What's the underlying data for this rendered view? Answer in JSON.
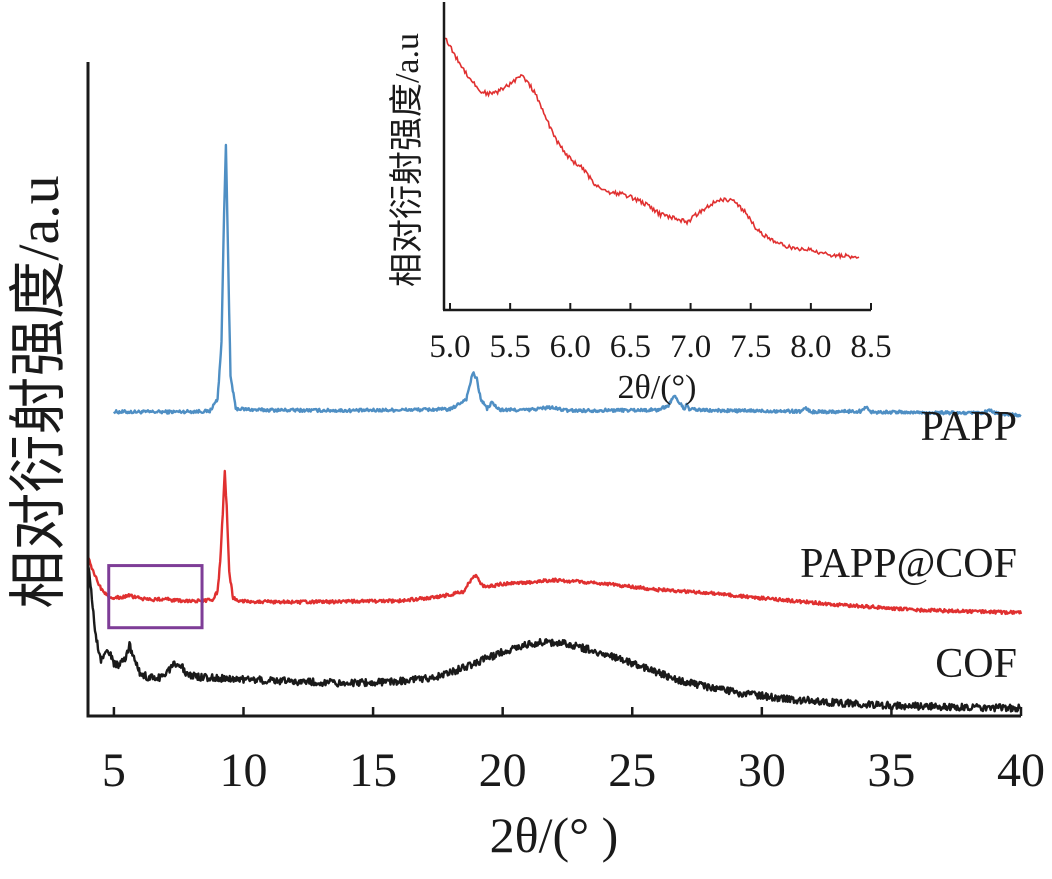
{
  "chart_data": [
    {
      "id": "main",
      "type": "line",
      "xlabel": "2θ/(° )",
      "ylabel": "相对衍射强度/a.u",
      "xlim": [
        4,
        40
      ],
      "ylim": [
        0,
        100
      ],
      "xticks": [
        5,
        10,
        15,
        20,
        25,
        30,
        35,
        40
      ],
      "xtick_labels": [
        "5",
        "10",
        "15",
        "20",
        "25",
        "30",
        "35",
        "40"
      ],
      "yticks": false,
      "grid": false,
      "series": [
        {
          "name": "PAPP",
          "color": "#4f8fc4",
          "x": [
            5.0,
            7.0,
            8.7,
            9.0,
            9.15,
            9.25,
            9.32,
            9.4,
            9.5,
            9.7,
            10.5,
            14.0,
            18.0,
            18.6,
            18.85,
            19.0,
            19.15,
            19.4,
            19.6,
            19.75,
            19.9,
            21.0,
            21.8,
            22.5,
            26.0,
            26.4,
            26.6,
            26.8,
            27.0,
            27.1,
            27.2,
            28.0,
            31.5,
            31.7,
            31.9,
            33.8,
            34.0,
            34.2,
            38.5,
            38.8,
            39.1,
            40.0
          ],
          "y": [
            46.5,
            46.5,
            46.6,
            48.5,
            57.0,
            77.0,
            87.5,
            71.0,
            52.0,
            47.0,
            46.8,
            46.7,
            46.9,
            48.5,
            52.5,
            51.5,
            48.5,
            47.0,
            48.0,
            47.2,
            46.8,
            46.8,
            47.2,
            46.7,
            46.8,
            47.5,
            49.0,
            48.0,
            47.0,
            47.5,
            46.9,
            46.7,
            46.6,
            47.0,
            46.5,
            46.6,
            47.3,
            46.5,
            46.3,
            46.7,
            46.2,
            46.0
          ]
        },
        {
          "name": "PAPP@COF",
          "color": "#e03030",
          "x": [
            4.0,
            4.2,
            4.5,
            4.8,
            5.2,
            5.6,
            6.0,
            6.5,
            7.0,
            7.5,
            8.0,
            8.5,
            8.8,
            9.0,
            9.1,
            9.2,
            9.28,
            9.35,
            9.45,
            9.6,
            9.9,
            10.5,
            12.0,
            14.0,
            16.0,
            17.5,
            18.5,
            18.8,
            19.0,
            19.2,
            19.5,
            20.0,
            21.0,
            22.0,
            23.0,
            24.0,
            26.0,
            28.0,
            30.0,
            33.0,
            36.0,
            40.0
          ],
          "y": [
            24.5,
            22.0,
            19.5,
            18.2,
            18.1,
            18.4,
            18.0,
            17.8,
            17.9,
            17.6,
            17.6,
            17.6,
            17.8,
            19.0,
            23.5,
            31.0,
            37.5,
            32.0,
            22.0,
            18.0,
            17.6,
            17.5,
            17.4,
            17.5,
            17.6,
            18.2,
            19.0,
            21.0,
            21.5,
            20.0,
            19.8,
            20.2,
            20.4,
            20.8,
            20.5,
            20.2,
            19.3,
            18.8,
            18.0,
            17.0,
            16.2,
            15.8
          ]
        },
        {
          "name": "COF",
          "color": "#1a1a1a",
          "x": [
            4.0,
            4.15,
            4.3,
            4.5,
            4.7,
            4.85,
            5.0,
            5.2,
            5.4,
            5.6,
            5.8,
            6.0,
            6.3,
            6.7,
            7.0,
            7.3,
            7.5,
            7.8,
            8.2,
            9.0,
            10.0,
            12.0,
            14.0,
            16.0,
            17.5,
            18.5,
            19.5,
            20.5,
            21.5,
            22.5,
            23.5,
            24.5,
            25.5,
            27.0,
            29.0,
            31.0,
            33.0,
            35.0,
            37.0,
            40.0
          ],
          "y": [
            23.5,
            18.0,
            12.0,
            8.5,
            10.0,
            9.5,
            8.0,
            7.8,
            8.5,
            10.8,
            8.5,
            6.5,
            6.0,
            5.8,
            6.3,
            8.0,
            8.2,
            6.5,
            6.0,
            5.8,
            5.6,
            5.3,
            5.0,
            5.3,
            6.0,
            7.4,
            9.0,
            10.5,
            11.3,
            11.0,
            10.0,
            8.8,
            7.3,
            5.2,
            3.6,
            2.6,
            2.0,
            1.6,
            1.4,
            1.2
          ]
        }
      ],
      "annotations": [
        {
          "text": "PAPP",
          "series": "PAPP"
        },
        {
          "text": "PAPP@COF",
          "series": "PAPP@COF"
        },
        {
          "text": "COF",
          "series": "COF"
        }
      ],
      "highlight_box": {
        "x": [
          4.8,
          8.4
        ],
        "y": [
          13.5,
          23.0
        ],
        "color": "#7e3d97"
      }
    },
    {
      "id": "inset",
      "type": "line",
      "xlabel": "2θ/(°)",
      "ylabel": "相对衍射强度/a.u",
      "xlim": [
        4.95,
        8.5
      ],
      "ylim": [
        0,
        100
      ],
      "xticks": [
        5.0,
        5.5,
        6.0,
        6.5,
        7.0,
        7.5,
        8.0,
        8.5
      ],
      "xtick_labels": [
        "5.0",
        "5.5",
        "6.0",
        "6.5",
        "7.0",
        "7.5",
        "8.0",
        "8.5"
      ],
      "yticks": false,
      "grid": false,
      "series": [
        {
          "name": "PAPP@COF",
          "color": "#e03030",
          "x": [
            4.95,
            5.05,
            5.15,
            5.25,
            5.35,
            5.45,
            5.55,
            5.6,
            5.7,
            5.8,
            5.9,
            6.0,
            6.1,
            6.2,
            6.3,
            6.45,
            6.6,
            6.75,
            6.9,
            6.97,
            7.05,
            7.15,
            7.25,
            7.35,
            7.45,
            7.55,
            7.7,
            7.85,
            8.0,
            8.15,
            8.3,
            8.4
          ],
          "y": [
            89.0,
            82.0,
            76.0,
            71.0,
            70.0,
            72.0,
            75.0,
            76.0,
            71.0,
            62.0,
            54.0,
            49.0,
            46.0,
            41.0,
            38.5,
            37.5,
            35.0,
            31.0,
            29.5,
            28.5,
            31.0,
            34.0,
            36.0,
            35.5,
            32.0,
            26.0,
            22.0,
            20.0,
            19.5,
            18.0,
            17.5,
            17.3
          ]
        }
      ]
    }
  ]
}
